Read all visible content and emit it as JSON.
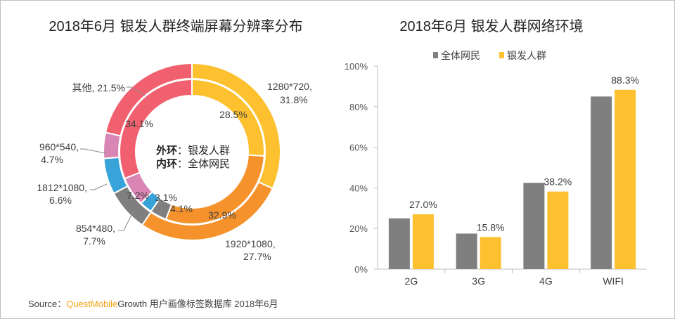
{
  "source": {
    "label": "Source：",
    "brand": "QuestMobile",
    "text": "Growth 用户画像标签数据库 2018年6月"
  },
  "chart_data": [
    {
      "type": "pie",
      "title": "2018年6月 银发人群终端屏幕分辨率分布",
      "center_lines": [
        {
          "bold": "外环",
          "text": "：银发人群"
        },
        {
          "bold": "内环",
          "text": "：全体网民"
        }
      ],
      "categories": [
        "1280*720",
        "1920*1080",
        "854*480",
        "1812*1080",
        "960*540",
        "其他"
      ],
      "colors": [
        "#fdc02f",
        "#f5922b",
        "#7f7f7f",
        "#37a3d9",
        "#d986b5",
        "#f0606e"
      ],
      "series": [
        {
          "name": "银发人群",
          "ring": "outer",
          "values": [
            31.8,
            27.7,
            7.7,
            6.6,
            4.7,
            21.5
          ]
        },
        {
          "name": "全体网民",
          "ring": "inner",
          "values": [
            28.5,
            32.9,
            4.1,
            3.1,
            7.2,
            34.1
          ]
        }
      ],
      "outer_labels": [
        "1280*720,",
        "31.8%",
        "1920*1080,",
        "27.7%",
        "854*480,",
        "7.7%",
        "1812*1080,",
        "6.6%",
        "960*540,",
        "4.7%",
        "其他, 21.5%"
      ],
      "inner_labels": [
        "28.5%",
        "32.9%",
        "4.1%",
        "3.1%",
        "7.2%",
        "34.1%"
      ]
    },
    {
      "type": "bar",
      "title": "2018年6月 银发人群网络环境",
      "categories": [
        "2G",
        "3G",
        "4G",
        "WIFI"
      ],
      "series": [
        {
          "name": "全体网民",
          "color": "#7f7f7f",
          "values": [
            25.0,
            17.5,
            42.5,
            85.0
          ]
        },
        {
          "name": "银发人群",
          "color": "#fdc02f",
          "values": [
            27.0,
            15.8,
            38.2,
            88.3
          ]
        }
      ],
      "data_labels": [
        "27.0%",
        "15.8%",
        "38.2%",
        "88.3%"
      ],
      "ylim": [
        0,
        100
      ],
      "yticks": [
        "0%",
        "20%",
        "40%",
        "60%",
        "80%",
        "100%"
      ],
      "legend": "top"
    }
  ]
}
